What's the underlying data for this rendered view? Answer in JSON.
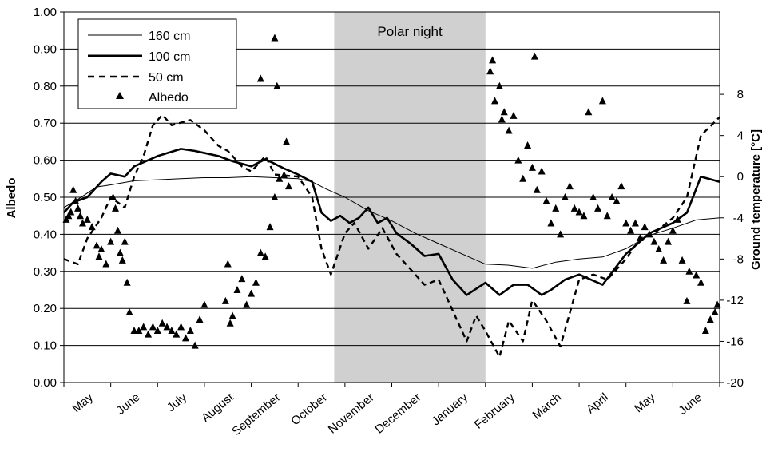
{
  "chart_data": {
    "type": "line",
    "y_left_label": "Albedo",
    "y_right_label": "Ground temperature [°C]",
    "y_left_range": [
      0,
      1
    ],
    "y_left_ticks": [
      "0.00",
      "0.10",
      "0.20",
      "0.30",
      "0.40",
      "0.50",
      "0.60",
      "0.70",
      "0.80",
      "0.90",
      "1.00"
    ],
    "y_right_range": [
      -20,
      16
    ],
    "y_right_ticks": [
      "8",
      "4",
      "0",
      "-4",
      "-8",
      "-12",
      "-16",
      "-20"
    ],
    "month_labels": [
      "May",
      "June",
      "July",
      "August",
      "September",
      "October",
      "November",
      "December",
      "January",
      "February",
      "March",
      "April",
      "May",
      "June"
    ],
    "x_range": [
      0,
      14
    ],
    "grid": true,
    "legend_position": "top-left",
    "annotation": {
      "label": "Polar night",
      "x_start": 5.77,
      "x_end": 9.0
    },
    "legend": [
      "160 cm",
      "100 cm",
      "50 cm",
      "Albedo"
    ],
    "series": [
      {
        "name": "160 cm",
        "style": "thin-solid",
        "points": [
          [
            0,
            -3
          ],
          [
            0.3,
            -2.2
          ],
          [
            0.7,
            -1
          ],
          [
            1,
            -0.8
          ],
          [
            1.5,
            -0.4
          ],
          [
            2,
            -0.3
          ],
          [
            2.5,
            -0.2
          ],
          [
            3,
            -0.1
          ],
          [
            3.5,
            -0.1
          ],
          [
            4,
            0
          ],
          [
            4.5,
            -0.1
          ],
          [
            5,
            -0.2
          ],
          [
            5.3,
            -0.5
          ],
          [
            5.6,
            -1.2
          ],
          [
            6,
            -2
          ],
          [
            6.5,
            -3.3
          ],
          [
            7,
            -4.3
          ],
          [
            7.5,
            -5.5
          ],
          [
            8,
            -6.5
          ],
          [
            8.5,
            -7.5
          ],
          [
            9,
            -8.5
          ],
          [
            9.5,
            -8.6
          ],
          [
            10,
            -8.9
          ],
          [
            10.5,
            -8.3
          ],
          [
            11,
            -8
          ],
          [
            11.5,
            -7.8
          ],
          [
            12,
            -7
          ],
          [
            12.5,
            -5.7
          ],
          [
            13,
            -5
          ],
          [
            13.5,
            -4.2
          ],
          [
            14,
            -4
          ]
        ]
      },
      {
        "name": "100 cm",
        "style": "thick-solid",
        "points": [
          [
            0,
            -3.5
          ],
          [
            0.2,
            -2.5
          ],
          [
            0.5,
            -2
          ],
          [
            0.8,
            -0.5
          ],
          [
            1,
            0.3
          ],
          [
            1.3,
            0
          ],
          [
            1.5,
            1
          ],
          [
            2,
            2
          ],
          [
            2.5,
            2.7
          ],
          [
            2.8,
            2.5
          ],
          [
            3.3,
            2
          ],
          [
            3.6,
            1.5
          ],
          [
            4,
            1
          ],
          [
            4.3,
            1.7
          ],
          [
            4.7,
            0.8
          ],
          [
            5,
            0.2
          ],
          [
            5.3,
            -0.5
          ],
          [
            5.5,
            -3.5
          ],
          [
            5.7,
            -4.3
          ],
          [
            5.9,
            -3.8
          ],
          [
            6.1,
            -4.5
          ],
          [
            6.3,
            -4
          ],
          [
            6.5,
            -3
          ],
          [
            6.7,
            -4.5
          ],
          [
            6.9,
            -4
          ],
          [
            7.1,
            -5.5
          ],
          [
            7.4,
            -6.5
          ],
          [
            7.7,
            -7.7
          ],
          [
            8,
            -7.5
          ],
          [
            8.3,
            -10
          ],
          [
            8.6,
            -11.5
          ],
          [
            9,
            -10.3
          ],
          [
            9.3,
            -11.5
          ],
          [
            9.6,
            -10.5
          ],
          [
            9.9,
            -10.5
          ],
          [
            10.2,
            -11.5
          ],
          [
            10.4,
            -11
          ],
          [
            10.7,
            -10
          ],
          [
            11,
            -9.5
          ],
          [
            11.5,
            -10.5
          ],
          [
            12,
            -7.5
          ],
          [
            12.5,
            -5.5
          ],
          [
            13,
            -4.5
          ],
          [
            13.3,
            -3.5
          ],
          [
            13.6,
            0
          ],
          [
            14,
            -0.5
          ]
        ]
      },
      {
        "name": "50 cm",
        "style": "dashed",
        "points": [
          [
            0,
            -8
          ],
          [
            0.3,
            -8.5
          ],
          [
            0.5,
            -6
          ],
          [
            0.8,
            -4
          ],
          [
            1,
            -2
          ],
          [
            1.3,
            -3
          ],
          [
            1.5,
            0
          ],
          [
            1.7,
            2
          ],
          [
            1.9,
            5
          ],
          [
            2.1,
            6
          ],
          [
            2.3,
            5
          ],
          [
            2.7,
            5.5
          ],
          [
            3,
            4.5
          ],
          [
            3.3,
            3
          ],
          [
            3.5,
            2.5
          ],
          [
            3.8,
            1
          ],
          [
            4,
            0.5
          ],
          [
            4.3,
            2
          ],
          [
            4.5,
            0.2
          ],
          [
            5,
            0
          ],
          [
            5.3,
            -2
          ],
          [
            5.5,
            -7
          ],
          [
            5.7,
            -9.5
          ],
          [
            6,
            -5.5
          ],
          [
            6.2,
            -4.5
          ],
          [
            6.5,
            -7
          ],
          [
            6.8,
            -5
          ],
          [
            7.1,
            -7.5
          ],
          [
            7.4,
            -9
          ],
          [
            7.7,
            -10.5
          ],
          [
            8,
            -10
          ],
          [
            8.3,
            -13
          ],
          [
            8.6,
            -16
          ],
          [
            8.8,
            -13.5
          ],
          [
            9,
            -15
          ],
          [
            9.3,
            -17.5
          ],
          [
            9.5,
            -14
          ],
          [
            9.8,
            -16
          ],
          [
            10,
            -12
          ],
          [
            10.3,
            -14
          ],
          [
            10.6,
            -16.5
          ],
          [
            11,
            -10
          ],
          [
            11.3,
            -9.5
          ],
          [
            11.6,
            -10
          ],
          [
            12,
            -8
          ],
          [
            12.3,
            -6
          ],
          [
            12.6,
            -5.5
          ],
          [
            13,
            -4
          ],
          [
            13.3,
            -2
          ],
          [
            13.6,
            4
          ],
          [
            14,
            5.8
          ]
        ]
      },
      {
        "name": "Albedo",
        "style": "markers",
        "points": [
          [
            0.05,
            0.44
          ],
          [
            0.1,
            0.45
          ],
          [
            0.15,
            0.46
          ],
          [
            0.2,
            0.52
          ],
          [
            0.25,
            0.49
          ],
          [
            0.3,
            0.47
          ],
          [
            0.35,
            0.45
          ],
          [
            0.4,
            0.43
          ],
          [
            0.5,
            0.44
          ],
          [
            0.6,
            0.42
          ],
          [
            0.7,
            0.37
          ],
          [
            0.75,
            0.34
          ],
          [
            0.8,
            0.36
          ],
          [
            0.9,
            0.32
          ],
          [
            1.0,
            0.38
          ],
          [
            1.05,
            0.5
          ],
          [
            1.1,
            0.47
          ],
          [
            1.15,
            0.41
          ],
          [
            1.2,
            0.35
          ],
          [
            1.25,
            0.33
          ],
          [
            1.3,
            0.38
          ],
          [
            1.35,
            0.27
          ],
          [
            1.4,
            0.19
          ],
          [
            1.5,
            0.14
          ],
          [
            1.6,
            0.14
          ],
          [
            1.7,
            0.15
          ],
          [
            1.8,
            0.13
          ],
          [
            1.9,
            0.15
          ],
          [
            2.0,
            0.14
          ],
          [
            2.1,
            0.16
          ],
          [
            2.2,
            0.15
          ],
          [
            2.3,
            0.14
          ],
          [
            2.4,
            0.13
          ],
          [
            2.5,
            0.15
          ],
          [
            2.6,
            0.12
          ],
          [
            2.7,
            0.14
          ],
          [
            2.8,
            0.1
          ],
          [
            2.9,
            0.17
          ],
          [
            3.0,
            0.21
          ],
          [
            3.45,
            0.22
          ],
          [
            3.5,
            0.32
          ],
          [
            3.55,
            0.16
          ],
          [
            3.6,
            0.18
          ],
          [
            3.7,
            0.25
          ],
          [
            3.8,
            0.28
          ],
          [
            3.9,
            0.21
          ],
          [
            4.0,
            0.24
          ],
          [
            4.1,
            0.27
          ],
          [
            4.2,
            0.35
          ],
          [
            4.3,
            0.34
          ],
          [
            4.4,
            0.42
          ],
          [
            4.5,
            0.5
          ],
          [
            4.2,
            0.82
          ],
          [
            4.5,
            0.93
          ],
          [
            4.55,
            0.8
          ],
          [
            4.6,
            0.55
          ],
          [
            4.7,
            0.56
          ],
          [
            4.75,
            0.65
          ],
          [
            4.8,
            0.53
          ],
          [
            9.1,
            0.84
          ],
          [
            9.15,
            0.87
          ],
          [
            9.2,
            0.76
          ],
          [
            9.3,
            0.8
          ],
          [
            9.35,
            0.71
          ],
          [
            9.4,
            0.73
          ],
          [
            9.5,
            0.68
          ],
          [
            9.6,
            0.72
          ],
          [
            9.7,
            0.6
          ],
          [
            9.8,
            0.55
          ],
          [
            9.9,
            0.64
          ],
          [
            10.0,
            0.58
          ],
          [
            10.05,
            0.88
          ],
          [
            10.1,
            0.52
          ],
          [
            10.2,
            0.57
          ],
          [
            10.3,
            0.49
          ],
          [
            10.4,
            0.43
          ],
          [
            10.5,
            0.47
          ],
          [
            10.6,
            0.4
          ],
          [
            10.7,
            0.5
          ],
          [
            10.8,
            0.53
          ],
          [
            10.9,
            0.47
          ],
          [
            11.0,
            0.46
          ],
          [
            11.1,
            0.45
          ],
          [
            11.2,
            0.73
          ],
          [
            11.3,
            0.5
          ],
          [
            11.4,
            0.47
          ],
          [
            11.5,
            0.76
          ],
          [
            11.6,
            0.45
          ],
          [
            11.7,
            0.5
          ],
          [
            11.8,
            0.49
          ],
          [
            11.9,
            0.53
          ],
          [
            12.0,
            0.43
          ],
          [
            12.1,
            0.41
          ],
          [
            12.2,
            0.43
          ],
          [
            12.3,
            0.39
          ],
          [
            12.4,
            0.42
          ],
          [
            12.5,
            0.4
          ],
          [
            12.6,
            0.38
          ],
          [
            12.7,
            0.36
          ],
          [
            12.8,
            0.33
          ],
          [
            12.9,
            0.38
          ],
          [
            13.0,
            0.41
          ],
          [
            13.1,
            0.44
          ],
          [
            13.2,
            0.33
          ],
          [
            13.3,
            0.22
          ],
          [
            13.35,
            0.3
          ],
          [
            13.5,
            0.29
          ],
          [
            13.6,
            0.27
          ],
          [
            13.7,
            0.14
          ],
          [
            13.8,
            0.17
          ],
          [
            13.9,
            0.19
          ],
          [
            13.95,
            0.21
          ]
        ]
      }
    ]
  }
}
